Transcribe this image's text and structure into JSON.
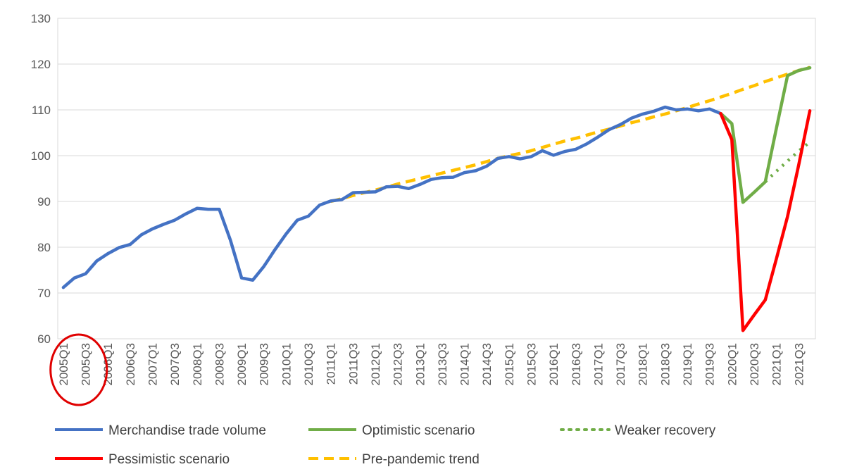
{
  "chart_data": {
    "type": "line",
    "title": "",
    "xlabel": "",
    "ylabel": "",
    "ylim": [
      60,
      130
    ],
    "yticks": [
      60,
      70,
      80,
      90,
      100,
      110,
      120,
      130
    ],
    "grid": true,
    "legend_position": "bottom",
    "x": [
      "2005Q1",
      "2005Q2",
      "2005Q3",
      "2005Q4",
      "2006Q1",
      "2006Q2",
      "2006Q3",
      "2006Q4",
      "2007Q1",
      "2007Q2",
      "2007Q3",
      "2007Q4",
      "2008Q1",
      "2008Q2",
      "2008Q3",
      "2008Q4",
      "2009Q1",
      "2009Q2",
      "2009Q3",
      "2009Q4",
      "2010Q1",
      "2010Q2",
      "2010Q3",
      "2010Q4",
      "2011Q1",
      "2011Q2",
      "2011Q3",
      "2011Q4",
      "2012Q1",
      "2012Q2",
      "2012Q3",
      "2012Q4",
      "2013Q1",
      "2013Q2",
      "2013Q3",
      "2013Q4",
      "2014Q1",
      "2014Q2",
      "2014Q3",
      "2014Q4",
      "2015Q1",
      "2015Q2",
      "2015Q3",
      "2015Q4",
      "2016Q1",
      "2016Q2",
      "2016Q3",
      "2016Q4",
      "2017Q1",
      "2017Q2",
      "2017Q3",
      "2017Q4",
      "2018Q1",
      "2018Q2",
      "2018Q3",
      "2018Q4",
      "2019Q1",
      "2019Q2",
      "2019Q3",
      "2019Q4",
      "2020Q1",
      "2020Q2",
      "2020Q3",
      "2020Q4",
      "2021Q1",
      "2021Q2",
      "2021Q3",
      "2021Q4"
    ],
    "tick_labels": [
      "2005Q1",
      "2005Q3",
      "2006Q1",
      "2006Q3",
      "2007Q1",
      "2007Q3",
      "2008Q1",
      "2008Q3",
      "2009Q1",
      "2009Q3",
      "2010Q1",
      "2010Q3",
      "2011Q1",
      "2011Q3",
      "2012Q1",
      "2012Q3",
      "2013Q1",
      "2013Q3",
      "2014Q1",
      "2014Q3",
      "2015Q1",
      "2015Q3",
      "2016Q1",
      "2016Q3",
      "2017Q1",
      "2017Q3",
      "2018Q1",
      "2018Q3",
      "2019Q1",
      "2019Q3",
      "2020Q1",
      "2020Q3",
      "2021Q1",
      "2021Q3"
    ],
    "series": [
      {
        "name": "Merchandise trade volume",
        "color": "#4472C4",
        "style": "solid",
        "values": [
          71.2,
          73.3,
          74.2,
          77.0,
          78.6,
          79.9,
          80.6,
          82.7,
          84.0,
          85.0,
          85.9,
          87.3,
          88.5,
          88.3,
          88.3,
          81.5,
          73.3,
          72.8,
          75.8,
          79.5,
          82.9,
          85.9,
          86.8,
          89.2,
          90.1,
          90.4,
          91.9,
          92.0,
          92.1,
          93.2,
          93.3,
          92.8,
          93.7,
          94.8,
          95.2,
          95.3,
          96.3,
          96.7,
          97.7,
          99.4,
          99.8,
          99.3,
          99.8,
          101.1,
          100.1,
          100.9,
          101.4,
          102.6,
          104.1,
          105.7,
          106.8,
          108.2,
          109.1,
          109.7,
          110.6,
          110.0,
          110.2,
          109.8,
          110.2,
          109.2,
          null,
          null,
          null,
          null,
          null,
          null,
          null,
          null
        ]
      },
      {
        "name": "Optimistic scenario",
        "color": "#70AD47",
        "style": "solid",
        "values": [
          null,
          null,
          null,
          null,
          null,
          null,
          null,
          null,
          null,
          null,
          null,
          null,
          null,
          null,
          null,
          null,
          null,
          null,
          null,
          null,
          null,
          null,
          null,
          null,
          null,
          null,
          null,
          null,
          null,
          null,
          null,
          null,
          null,
          null,
          null,
          null,
          null,
          null,
          null,
          null,
          null,
          null,
          null,
          null,
          null,
          null,
          null,
          null,
          null,
          null,
          null,
          null,
          null,
          null,
          null,
          null,
          null,
          null,
          null,
          109.2,
          107.0,
          89.8,
          92.0,
          94.3,
          106.0,
          117.5,
          118.6,
          119.2
        ]
      },
      {
        "name": "Weaker recovery",
        "color": "#70AD47",
        "style": "dotted",
        "values": [
          null,
          null,
          null,
          null,
          null,
          null,
          null,
          null,
          null,
          null,
          null,
          null,
          null,
          null,
          null,
          null,
          null,
          null,
          null,
          null,
          null,
          null,
          null,
          null,
          null,
          null,
          null,
          null,
          null,
          null,
          null,
          null,
          null,
          null,
          null,
          null,
          null,
          null,
          null,
          null,
          null,
          null,
          null,
          null,
          null,
          null,
          null,
          null,
          null,
          null,
          null,
          null,
          null,
          null,
          null,
          null,
          null,
          null,
          null,
          null,
          null,
          null,
          null,
          94.3,
          96.6,
          98.8,
          101.0,
          103.0
        ]
      },
      {
        "name": "Pessimistic scenario",
        "color": "#FF0000",
        "style": "solid",
        "values": [
          null,
          null,
          null,
          null,
          null,
          null,
          null,
          null,
          null,
          null,
          null,
          null,
          null,
          null,
          null,
          null,
          null,
          null,
          null,
          null,
          null,
          null,
          null,
          null,
          null,
          null,
          null,
          null,
          null,
          null,
          null,
          null,
          null,
          null,
          null,
          null,
          null,
          null,
          null,
          null,
          null,
          null,
          null,
          null,
          null,
          null,
          null,
          null,
          null,
          null,
          null,
          null,
          null,
          null,
          null,
          null,
          null,
          null,
          null,
          109.2,
          103.5,
          61.8,
          65.2,
          68.5,
          77.5,
          86.7,
          98.0,
          109.8
        ]
      },
      {
        "name": "Pre-pandemic trend",
        "color": "#FFC000",
        "style": "dashed",
        "values": [
          null,
          null,
          null,
          null,
          null,
          null,
          null,
          null,
          null,
          null,
          null,
          null,
          null,
          null,
          null,
          null,
          null,
          null,
          null,
          null,
          null,
          null,
          null,
          null,
          90.0,
          90.6,
          91.3,
          91.9,
          92.5,
          93.1,
          93.8,
          94.4,
          95.0,
          95.6,
          96.2,
          96.8,
          97.4,
          98.0,
          98.7,
          99.4,
          100.0,
          100.5,
          101.1,
          101.8,
          102.5,
          103.2,
          103.8,
          104.5,
          105.2,
          105.8,
          106.5,
          107.2,
          107.8,
          108.5,
          109.1,
          109.8,
          110.5,
          111.3,
          112.0,
          112.8,
          113.6,
          114.5,
          115.3,
          116.2,
          117.0,
          117.8,
          118.6,
          119.3
        ]
      }
    ],
    "legend": [
      {
        "label": "Merchandise trade volume",
        "color": "#4472C4",
        "style": "solid"
      },
      {
        "label": "Optimistic scenario",
        "color": "#70AD47",
        "style": "solid"
      },
      {
        "label": "Weaker recovery",
        "color": "#70AD47",
        "style": "dotted"
      },
      {
        "label": "Pessimistic scenario",
        "color": "#FF0000",
        "style": "solid"
      },
      {
        "label": "Pre-pandemic trend",
        "color": "#FFC000",
        "style": "dashed"
      }
    ],
    "annotation": {
      "type": "circle",
      "color": "#E00000",
      "target_tick_labels": [
        "2005Q1",
        "2005Q3"
      ]
    }
  }
}
